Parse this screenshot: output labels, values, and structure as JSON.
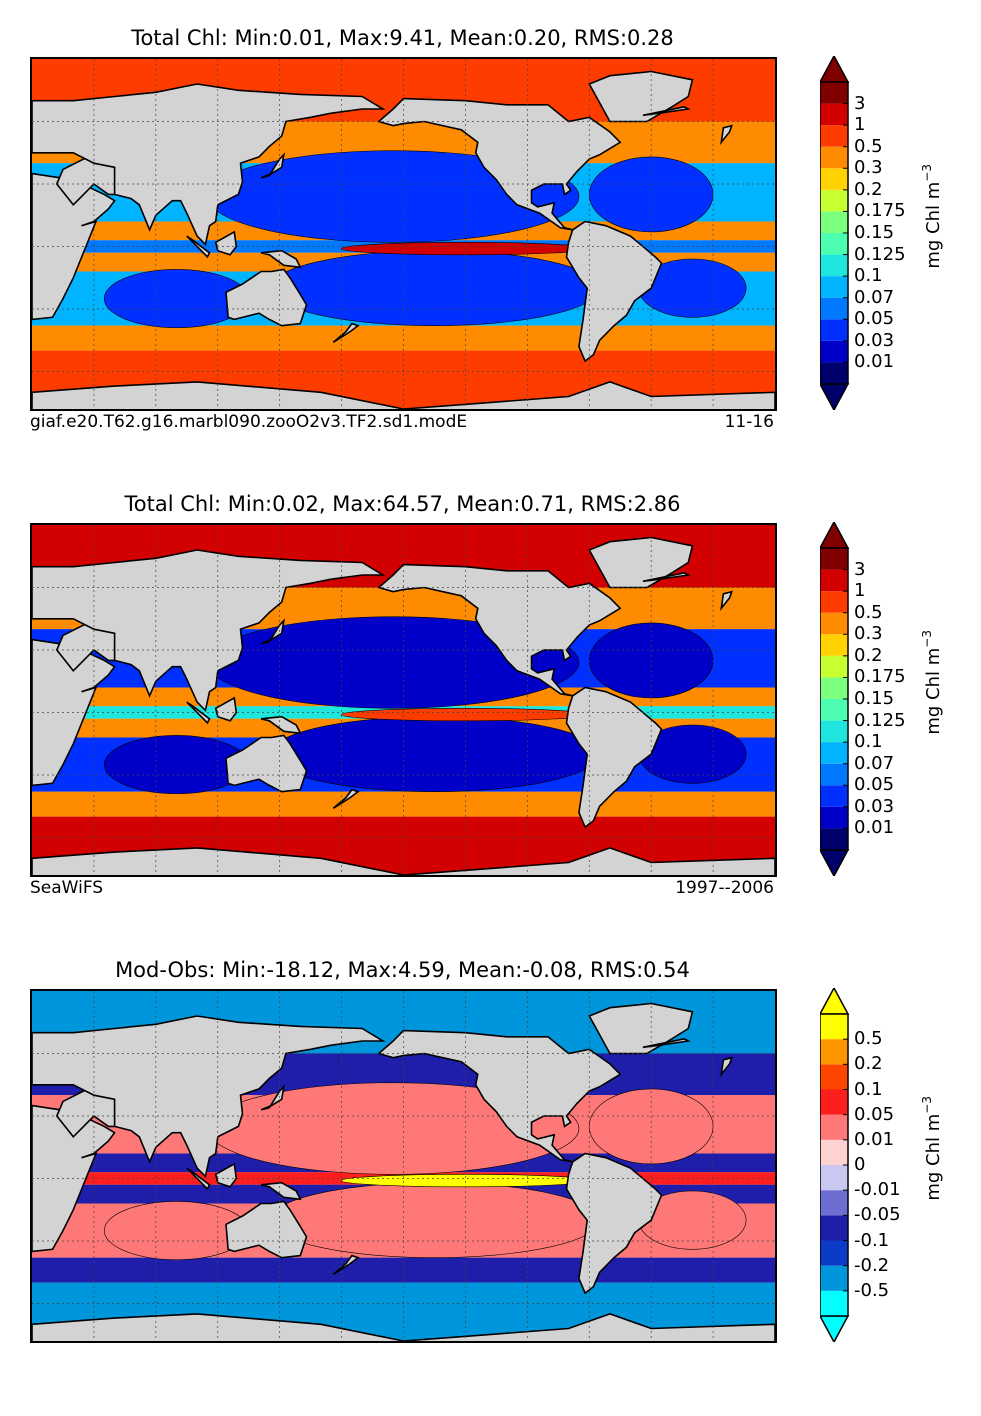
{
  "chart_data": [
    {
      "type": "heatmap",
      "title": "Total Chl: Min:0.01, Max:9.41, Mean:0.20, RMS:0.28",
      "footer_left": "giaf.e20.T62.g16.marbl090.zooO2v3.TF2.sd1.modE",
      "footer_right": "11-16",
      "colorbar_label": "mg Chl m",
      "colorbar_exp": "−3",
      "levels": [
        "0.01",
        "0.03",
        "0.05",
        "0.07",
        "0.1",
        "0.125",
        "0.15",
        "0.175",
        "0.2",
        "0.3",
        "0.5",
        "1",
        "3"
      ],
      "colors": [
        "#00006a",
        "#0000c8",
        "#0030ff",
        "#0078ff",
        "#00b4ff",
        "#1ee6dc",
        "#4cffb0",
        "#7cff7c",
        "#c8ff30",
        "#ffd200",
        "#ff8c00",
        "#ff3c00",
        "#d20000",
        "#800000"
      ],
      "field": {
        "equator": 0.06,
        "subtropics": 0.08,
        "midlat": 0.3,
        "highlat": 0.5,
        "upwelling": 1.5
      }
    },
    {
      "type": "heatmap",
      "title": "Total Chl: Min:0.02, Max:64.57, Mean:0.71, RMS:2.86",
      "footer_left": "SeaWiFS",
      "footer_right": "1997--2006",
      "colorbar_label": "mg Chl m",
      "colorbar_exp": "−3",
      "levels": [
        "0.01",
        "0.03",
        "0.05",
        "0.07",
        "0.1",
        "0.125",
        "0.15",
        "0.175",
        "0.2",
        "0.3",
        "0.5",
        "1",
        "3"
      ],
      "colors": [
        "#00006a",
        "#0000c8",
        "#0030ff",
        "#0078ff",
        "#00b4ff",
        "#1ee6dc",
        "#4cffb0",
        "#7cff7c",
        "#c8ff30",
        "#ffd200",
        "#ff8c00",
        "#ff3c00",
        "#d20000",
        "#800000"
      ],
      "field": {
        "equator": 0.12,
        "subtropics": 0.04,
        "midlat": 0.3,
        "highlat": 1.0,
        "upwelling": 0.5
      }
    },
    {
      "type": "heatmap",
      "title": "Mod-Obs: Min:-18.12, Max:4.59, Mean:-0.08, RMS:0.54",
      "footer_left": "",
      "footer_right": "",
      "colorbar_label": "mg Chl m",
      "colorbar_exp": "−3",
      "levels": [
        "-0.5",
        "-0.2",
        "-0.1",
        "-0.05",
        "-0.01",
        "0",
        "0.01",
        "0.05",
        "0.1",
        "0.2",
        "0.5"
      ],
      "colors": [
        "#00ffff",
        "#0096dc",
        "#0a3cc8",
        "#1e1eaa",
        "#6e6ed2",
        "#c8c8f0",
        "#ffd2d2",
        "#ff7878",
        "#ff1e1e",
        "#ff4600",
        "#ff9600",
        "#ffff00"
      ],
      "field": {
        "equator": 0.05,
        "subtropics": 0.03,
        "midlat": -0.06,
        "highlat": -0.3,
        "upwelling": 0.5
      }
    }
  ]
}
